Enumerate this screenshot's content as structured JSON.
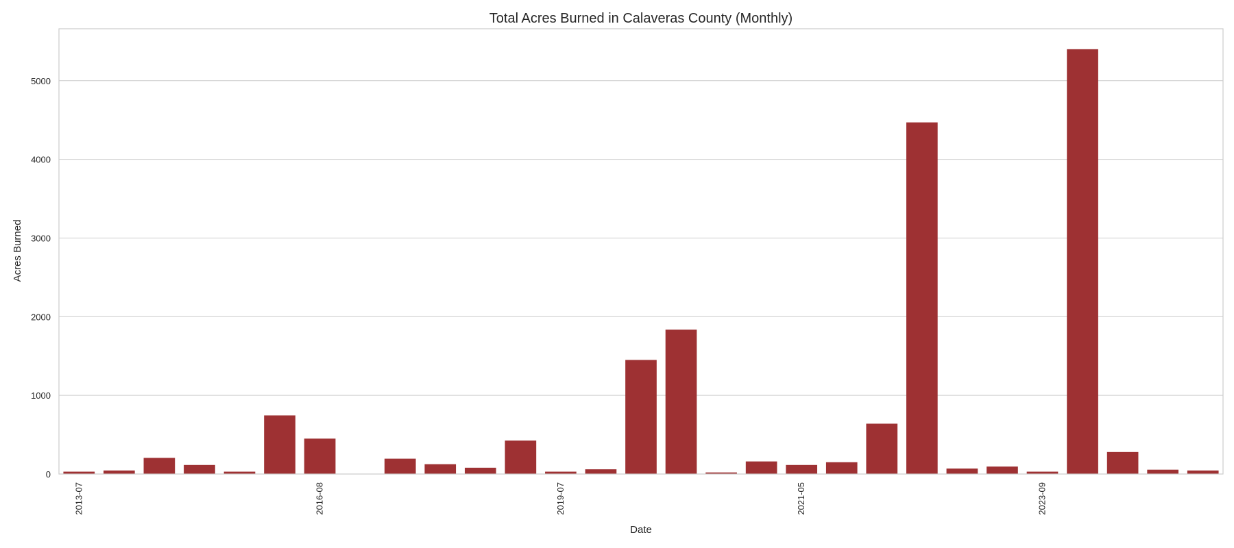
{
  "chart_data": {
    "type": "bar",
    "title": "Total Acres Burned in Calaveras County (Monthly)",
    "xlabel": "Date",
    "ylabel": "Acres Burned",
    "ylim": [
      0,
      5660
    ],
    "yticks": [
      0,
      1000,
      2000,
      3000,
      4000,
      5000
    ],
    "grid": true,
    "bar_color": "#9e3133",
    "x_tick_labels": [
      {
        "index": 0,
        "label": "2013-07"
      },
      {
        "index": 6,
        "label": "2016-08"
      },
      {
        "index": 12,
        "label": "2019-07"
      },
      {
        "index": 18,
        "label": "2021-05"
      },
      {
        "index": 24,
        "label": "2023-09"
      }
    ],
    "values": [
      30,
      45,
      205,
      115,
      30,
      745,
      450,
      0,
      195,
      125,
      80,
      425,
      30,
      60,
      1450,
      1835,
      20,
      160,
      115,
      150,
      640,
      4470,
      70,
      95,
      30,
      5400,
      280,
      55,
      45
    ]
  }
}
